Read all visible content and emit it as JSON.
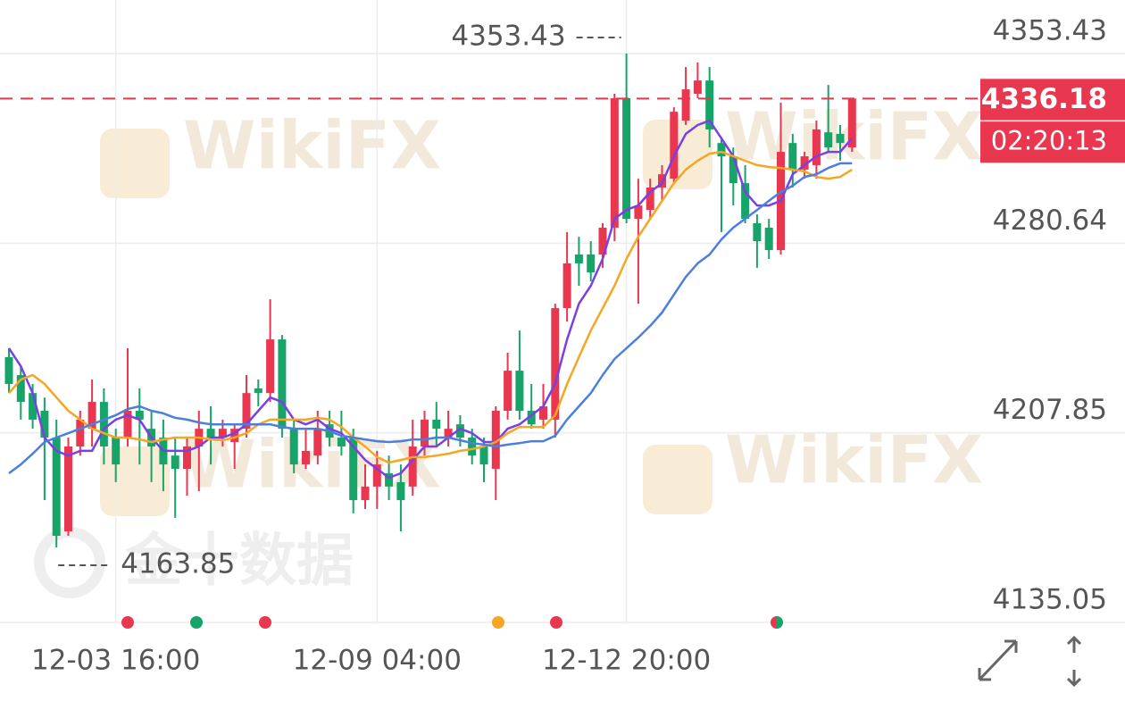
{
  "chart_data": {
    "type": "candlestick",
    "watermarks": [
      "WikiFX",
      "金十数据"
    ],
    "categories": [
      null,
      null,
      null,
      null,
      null,
      null,
      null,
      null,
      null,
      "12-03 16:00",
      null,
      null,
      null,
      null,
      null,
      null,
      null,
      null,
      null,
      null,
      null,
      null,
      null,
      null,
      null,
      null,
      null,
      null,
      null,
      null,
      null,
      "12-09 04:00",
      null,
      null,
      null,
      null,
      null,
      null,
      null,
      null,
      null,
      null,
      null,
      null,
      null,
      null,
      null,
      null,
      null,
      null,
      null,
      null,
      "12-12 20:00",
      null,
      null,
      null,
      null,
      null,
      null,
      null,
      null,
      null,
      null,
      null,
      null,
      null,
      null,
      null,
      null,
      null,
      null,
      null
    ],
    "open": [
      4236.9,
      4230.0,
      4223.1,
      4216.3,
      4206.0,
      4170.0,
      4202.6,
      4209.4,
      4219.7,
      4206.0,
      4206.0,
      4216.3,
      4209.4,
      4206.0,
      4199.1,
      4194.0,
      4202.6,
      4209.4,
      4206.0,
      4204.3,
      4209.4,
      4224.9,
      4223.1,
      4243.7,
      4209.4,
      4195.7,
      4199.1,
      4211.1,
      4206.0,
      4206.0,
      4182.0,
      4187.2,
      4192.3,
      4188.9,
      4187.2,
      4202.6,
      4212.9,
      4206.0,
      4211.1,
      4206.0,
      4202.6,
      4194.0,
      4216.3,
      4231.7,
      4216.3,
      4212.9,
      4212.9,
      4255.7,
      4276.3,
      4276.3,
      4276.3,
      4286.6,
      4336.3,
      4290.0,
      4293.4,
      4302.0,
      4305.4,
      4327.7,
      4338.0,
      4343.1,
      4319.1,
      4314.0,
      4303.7,
      4288.3,
      4286.6,
      4278.0,
      4319.1,
      4308.9,
      4310.6,
      4323.2,
      4322.6,
      4317.4
    ],
    "high": [
      4240.3,
      4233.4,
      4226.6,
      4221.4,
      4212.9,
      4206.0,
      4216.3,
      4228.3,
      4224.9,
      4209.4,
      4240.3,
      4224.9,
      4216.3,
      4212.9,
      4206.0,
      4206.0,
      4216.3,
      4218.0,
      4212.9,
      4211.1,
      4230.0,
      4228.3,
      4259.1,
      4245.4,
      4212.9,
      4209.4,
      4216.3,
      4216.3,
      4216.3,
      4209.4,
      4195.7,
      4200.9,
      4199.1,
      4195.7,
      4212.9,
      4216.3,
      4219.7,
      4216.3,
      4214.6,
      4209.4,
      4206.0,
      4218.0,
      4238.6,
      4247.1,
      4226.6,
      4226.6,
      4257.4,
      4284.9,
      4283.1,
      4281.4,
      4288.3,
      4338.0,
      4353.43,
      4305.4,
      4305.4,
      4310.6,
      4332.8,
      4348.3,
      4350.0,
      4348.3,
      4320.9,
      4317.4,
      4310.6,
      4291.7,
      4290.0,
      4334.6,
      4322.6,
      4315.7,
      4327.7,
      4341.4,
      4326.0,
      4336.18
    ],
    "low": [
      4223.1,
      4212.9,
      4209.4,
      4182.0,
      4163.85,
      4168.3,
      4199.1,
      4202.6,
      4195.7,
      4188.9,
      4202.6,
      4195.7,
      4188.9,
      4185.4,
      4175.2,
      4183.7,
      4185.4,
      4195.7,
      4202.6,
      4194.0,
      4206.0,
      4218.0,
      4219.7,
      4206.0,
      4192.3,
      4194.0,
      4195.7,
      4202.6,
      4199.1,
      4176.9,
      4178.6,
      4178.6,
      4182.0,
      4170.0,
      4183.7,
      4199.1,
      4202.6,
      4202.6,
      4202.6,
      4195.7,
      4188.9,
      4182.0,
      4212.9,
      4212.9,
      4209.4,
      4209.4,
      4206.0,
      4250.6,
      4264.3,
      4266.0,
      4271.2,
      4281.4,
      4288.3,
      4257.4,
      4290.0,
      4296.9,
      4303.7,
      4326.0,
      4336.3,
      4317.4,
      4284.9,
      4295.1,
      4288.3,
      4271.2,
      4274.6,
      4276.3,
      4302.0,
      4305.4,
      4305.4,
      4315.7,
      4312.3,
      4315.7
    ],
    "close": [
      4226.6,
      4219.7,
      4212.9,
      4206.0,
      4168.3,
      4202.6,
      4212.9,
      4219.7,
      4202.6,
      4195.7,
      4216.3,
      4212.9,
      4202.6,
      4195.7,
      4194.0,
      4202.6,
      4209.4,
      4206.0,
      4209.4,
      4209.4,
      4223.1,
      4223.1,
      4243.7,
      4209.4,
      4195.7,
      4200.9,
      4209.4,
      4206.0,
      4202.6,
      4182.0,
      4187.2,
      4195.7,
      4187.2,
      4182.0,
      4202.6,
      4212.9,
      4209.4,
      4209.4,
      4206.0,
      4199.1,
      4195.7,
      4216.3,
      4231.7,
      4216.3,
      4211.1,
      4218.0,
      4255.7,
      4272.9,
      4272.9,
      4269.4,
      4286.6,
      4336.3,
      4290.0,
      4295.1,
      4302.0,
      4307.1,
      4331.1,
      4339.7,
      4343.1,
      4324.3,
      4314.0,
      4303.7,
      4290.0,
      4281.4,
      4278.0,
      4315.7,
      4308.9,
      4314.0,
      4324.3,
      4317.4,
      4319.1,
      4336.18
    ],
    "up_color": "#e8374f",
    "down_color": "#17a468",
    "series": [
      {
        "color": "#7b3fe4",
        "values": [
          4240.3,
          4233.4,
          4223.1,
          4206.0,
          4200.9,
          4199.1,
          4200.9,
          4200.9,
          4209.4,
          4212.9,
          4214.6,
          4212.9,
          4206.0,
          4200.9,
          4200.9,
          4200.9,
          4202.6,
          4206.0,
          4206.0,
          4207.7,
          4211.1,
          4216.3,
          4221.4,
          4219.7,
          4212.9,
          4211.1,
          4212.9,
          4209.4,
          4207.7,
          4202.6,
          4197.4,
          4194.0,
          4190.6,
          4192.3,
          4197.4,
          4202.6,
          4202.6,
          4206.0,
          4209.4,
          4207.7,
          4204.3,
          4204.3,
          4209.4,
          4211.1,
          4214.6,
          4218.0,
          4226.6,
          4243.7,
          4257.4,
          4264.3,
          4274.6,
          4290.0,
          4293.4,
          4295.1,
          4300.3,
          4303.7,
          4314.0,
          4322.6,
          4326.0,
          4327.7,
          4320.9,
          4314.0,
          4300.3,
          4295.1,
          4295.1,
          4296.9,
          4307.1,
          4310.6,
          4314.0,
          4315.7,
          4315.7,
          4320.9
        ]
      },
      {
        "color": "#f5a623",
        "values": [
          4223.1,
          4228.3,
          4230.0,
          4226.6,
          4221.4,
          4216.3,
          4212.9,
          4209.4,
          4207.7,
          4206.0,
          4206.0,
          4205.3,
          4204.3,
          4205.3,
          4206.0,
          4206.0,
          4206.0,
          4205.3,
          4205.0,
          4206.0,
          4207.7,
          4211.1,
          4212.9,
          4212.9,
          4212.9,
          4212.9,
          4213.6,
          4212.9,
          4210.1,
          4206.0,
          4202.6,
          4198.5,
          4196.4,
          4197.4,
          4198.5,
          4198.5,
          4199.1,
          4199.8,
          4200.9,
          4201.6,
          4202.6,
          4204.3,
          4207.7,
          4210.1,
          4210.1,
          4210.1,
          4214.6,
          4226.6,
          4236.9,
          4247.1,
          4255.7,
          4264.3,
          4274.6,
          4283.1,
          4290.0,
          4296.9,
          4303.7,
          4308.9,
          4312.3,
          4315.0,
          4315.7,
          4314.0,
          4312.3,
          4310.6,
          4309.9,
          4309.5,
          4308.9,
          4308.2,
          4306.1,
          4305.4,
          4306.1,
          4308.9
        ]
      },
      {
        "color": "#4a7fe0",
        "values": [
          4192.3,
          4195.7,
          4199.8,
          4204.3,
          4206.0,
          4207.7,
          4209.4,
          4211.1,
          4212.9,
          4214.6,
          4217.0,
          4218.0,
          4216.3,
          4215.3,
          4213.6,
          4212.9,
          4211.8,
          4211.1,
          4211.1,
          4211.1,
          4211.1,
          4211.1,
          4211.1,
          4210.1,
          4209.4,
          4209.4,
          4209.4,
          4208.4,
          4206.7,
          4206.0,
          4205.3,
          4204.6,
          4204.3,
          4204.6,
          4205.3,
          4205.3,
          4206.0,
          4206.0,
          4205.0,
          4203.9,
          4203.3,
          4202.6,
          4203.3,
          4203.9,
          4204.6,
          4204.6,
          4206.7,
          4212.9,
          4218.0,
          4223.1,
          4230.0,
          4236.2,
          4240.3,
          4244.4,
          4248.9,
          4254.0,
          4260.9,
          4267.7,
          4272.9,
          4276.3,
          4282.1,
          4286.6,
          4290.0,
          4293.4,
          4296.9,
          4300.3,
          4302.7,
          4306.1,
          4307.1,
          4309.5,
          4311.3,
          4311.3
        ]
      }
    ],
    "ylim": [
      4135.05,
      4353.43
    ],
    "yticks": [
      4135.05,
      4207.85,
      4280.64,
      4353.43
    ],
    "grid": true,
    "high_marker": 4353.43,
    "low_marker": 4163.85,
    "current_price": 4336.18,
    "countdown": "02:20:13"
  }
}
